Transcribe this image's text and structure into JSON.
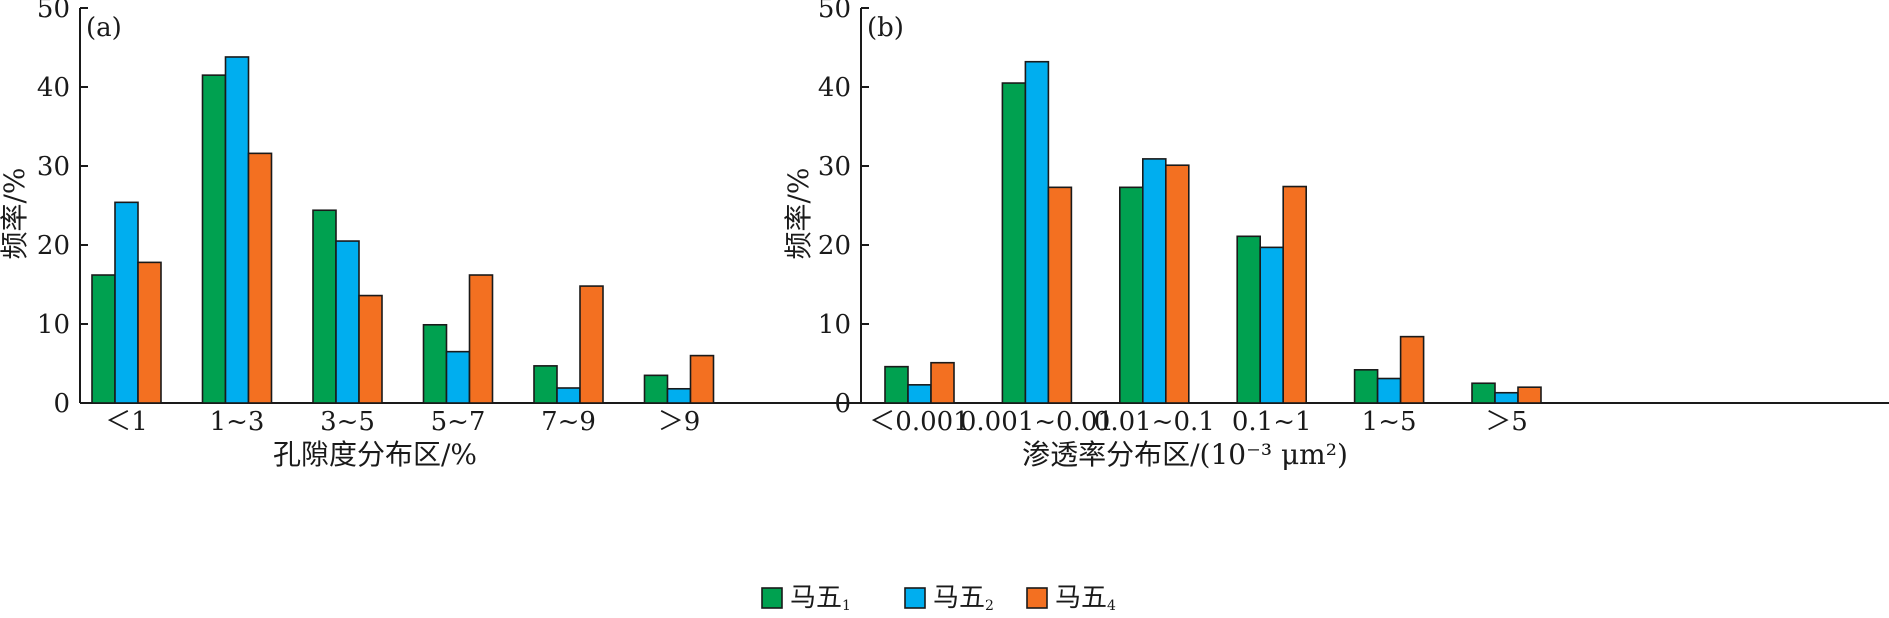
{
  "colors": {
    "green": "#00a150",
    "blue": "#00aeef",
    "orange": "#f37021",
    "axis": "#1a1a1a"
  },
  "legend": {
    "items": [
      {
        "base": "马五",
        "sub": "1",
        "color": "#00a150"
      },
      {
        "base": "马五",
        "sub": "2",
        "color": "#00aeef"
      },
      {
        "base": "马五",
        "sub": "4",
        "color": "#f37021"
      }
    ]
  },
  "chart_data": [
    {
      "type": "bar",
      "panel": "(a)",
      "title": "",
      "xlabel": "孔隙度分布区/%",
      "ylabel": "频率/%",
      "ylim": [
        0,
        50
      ],
      "yticks": [
        0,
        10,
        20,
        30,
        40,
        50
      ],
      "grid": false,
      "categories": [
        "＜1",
        "1~3",
        "3~5",
        "5~7",
        "7~9",
        "＞9"
      ],
      "series": [
        {
          "name": "马五1",
          "color": "#00a150",
          "values": [
            16.2,
            41.5,
            24.4,
            9.9,
            4.7,
            3.5
          ]
        },
        {
          "name": "马五2",
          "color": "#00aeef",
          "values": [
            25.4,
            43.8,
            20.5,
            6.5,
            1.9,
            1.8
          ]
        },
        {
          "name": "马五4",
          "color": "#f37021",
          "values": [
            17.8,
            31.6,
            13.6,
            16.2,
            14.8,
            6.0
          ]
        }
      ]
    },
    {
      "type": "bar",
      "panel": "(b)",
      "title": "",
      "xlabel": "渗透率分布区/(10⁻³ μm²)",
      "ylabel": "频率/%",
      "ylim": [
        0,
        50
      ],
      "yticks": [
        0,
        10,
        20,
        30,
        40,
        50
      ],
      "grid": false,
      "categories": [
        "＜0.001",
        "0.001~0.01",
        "0.01~0.1",
        "0.1~1",
        "1~5",
        "＞5"
      ],
      "series": [
        {
          "name": "马五1",
          "color": "#00a150",
          "values": [
            4.6,
            40.5,
            27.3,
            21.1,
            4.2,
            2.5
          ]
        },
        {
          "name": "马五2",
          "color": "#00aeef",
          "values": [
            2.3,
            43.2,
            30.9,
            19.7,
            3.1,
            1.3
          ]
        },
        {
          "name": "马五4",
          "color": "#f37021",
          "values": [
            5.1,
            27.3,
            30.1,
            27.4,
            8.4,
            2.0
          ]
        }
      ]
    }
  ]
}
